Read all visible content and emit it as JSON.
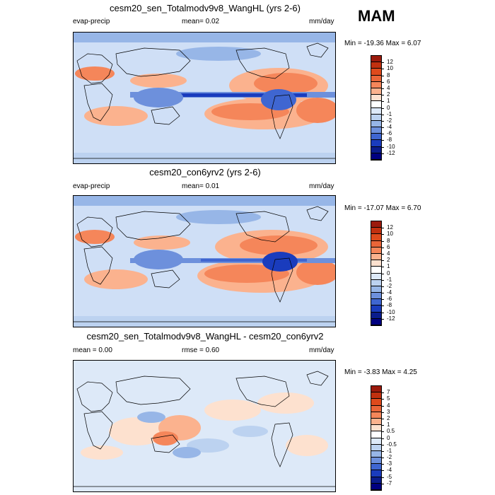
{
  "season": "MAM",
  "panels": [
    {
      "title": "cesm20_sen_Totalmodv9v8_WangHL (yrs 2-6)",
      "left_label": "evap-precip",
      "center_label": "mean=   0.02",
      "units": "mm/day",
      "minmax": "Min = -19.36 Max =   6.07",
      "colorbar_labels": [
        "12",
        "10",
        "8",
        "6",
        "4",
        "2",
        "1",
        "0",
        "-1",
        "-2",
        "-4",
        "-6",
        "-8",
        "-10",
        "-12"
      ],
      "colorbar_colors": [
        "#9b1a0c",
        "#c1300f",
        "#de4a1c",
        "#ea6538",
        "#f5865a",
        "#fbb28e",
        "#fde1cf",
        "#ffffff",
        "#dde9f8",
        "#bcd2f0",
        "#97b6e7",
        "#6d90dc",
        "#3f66d1",
        "#1a3cbd",
        "#0a1c8c",
        "#000080"
      ]
    },
    {
      "title": "cesm20_con6yrv2 (yrs 2-6)",
      "left_label": "evap-precip",
      "center_label": "mean=   0.01",
      "units": "mm/day",
      "minmax": "Min = -17.07 Max =   6.70",
      "colorbar_labels": [
        "12",
        "10",
        "8",
        "6",
        "4",
        "2",
        "1",
        "0",
        "-1",
        "-2",
        "-4",
        "-6",
        "-8",
        "-10",
        "-12"
      ],
      "colorbar_colors": [
        "#9b1a0c",
        "#c1300f",
        "#de4a1c",
        "#ea6538",
        "#f5865a",
        "#fbb28e",
        "#fde1cf",
        "#ffffff",
        "#dde9f8",
        "#bcd2f0",
        "#97b6e7",
        "#6d90dc",
        "#3f66d1",
        "#1a3cbd",
        "#0a1c8c",
        "#000080"
      ]
    },
    {
      "title": "cesm20_sen_Totalmodv9v8_WangHL - cesm20_con6yrv2",
      "left_label": "mean =   0.00",
      "center_label": "rmse =   0.60",
      "units": "mm/day",
      "minmax": "Min =  -3.83 Max =   4.25",
      "colorbar_labels": [
        "7",
        "5",
        "4",
        "3",
        "2",
        "1",
        "0.5",
        "0",
        "-0.5",
        "-1",
        "-2",
        "-3",
        "-4",
        "-5",
        "-7"
      ],
      "colorbar_colors": [
        "#9b1a0c",
        "#c1300f",
        "#de4a1c",
        "#ea6538",
        "#f5865a",
        "#fbb28e",
        "#fde1cf",
        "#ffffff",
        "#dde9f8",
        "#bcd2f0",
        "#97b6e7",
        "#6d90dc",
        "#3f66d1",
        "#1a3cbd",
        "#0a1c8c",
        "#000080"
      ]
    }
  ]
}
